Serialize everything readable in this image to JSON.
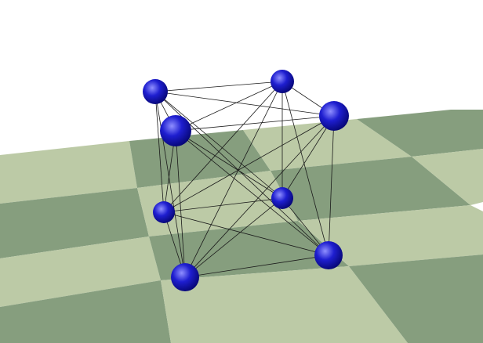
{
  "scene": {
    "background": "#ffffff",
    "floor": {
      "light_color": "#bccaa6",
      "dark_color": "#869e7e"
    },
    "sphere": {
      "color": "#1e1ed0",
      "highlight": "#8f8fff",
      "shadow": "#050570",
      "count": 8
    },
    "edges": {
      "color": "#1a1a1a",
      "connectivity": "complete-graph"
    }
  }
}
